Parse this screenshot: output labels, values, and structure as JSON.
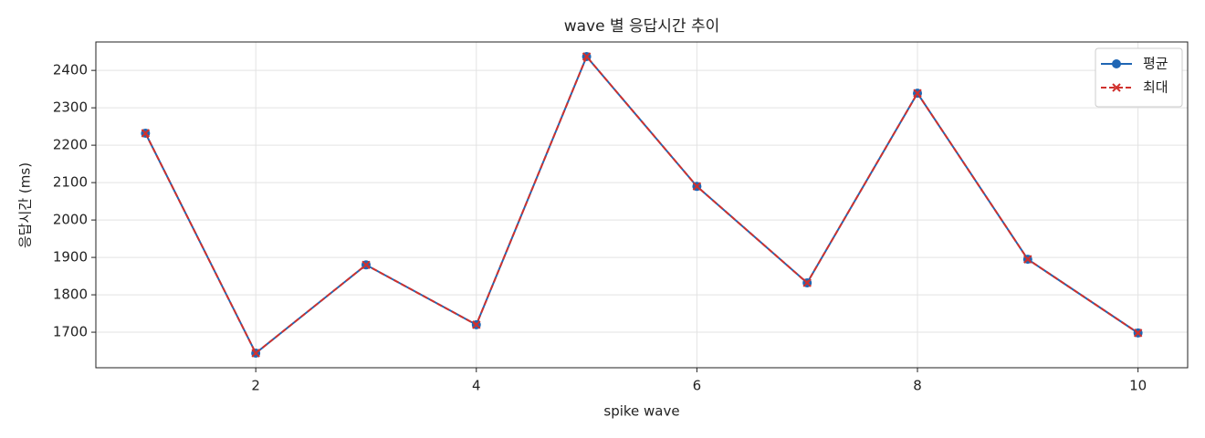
{
  "chart_data": {
    "type": "line",
    "title": "wave 별 응답시간 추이",
    "xlabel": "spike wave",
    "ylabel": "응답시간 (ms)",
    "x": [
      1,
      2,
      3,
      4,
      5,
      6,
      7,
      8,
      9,
      10
    ],
    "series": [
      {
        "name": "평균",
        "color": "#1f66b4",
        "linestyle": "solid",
        "marker": "o",
        "values": [
          2232,
          1644,
          1880,
          1720,
          2437,
          2090,
          1832,
          2339,
          1895,
          1698
        ]
      },
      {
        "name": "최대",
        "color": "#d0312d",
        "linestyle": "dashed",
        "marker": "x",
        "values": [
          2232,
          1644,
          1880,
          1720,
          2437,
          2090,
          1832,
          2339,
          1895,
          1698
        ]
      }
    ],
    "xlim": [
      0.55,
      10.45
    ],
    "xticks": [
      2,
      4,
      6,
      8,
      10
    ],
    "ylim": [
      1605,
      2476
    ],
    "yticks": [
      1700,
      1800,
      1900,
      2000,
      2100,
      2200,
      2300,
      2400
    ],
    "grid": true,
    "legend": "upper right"
  }
}
